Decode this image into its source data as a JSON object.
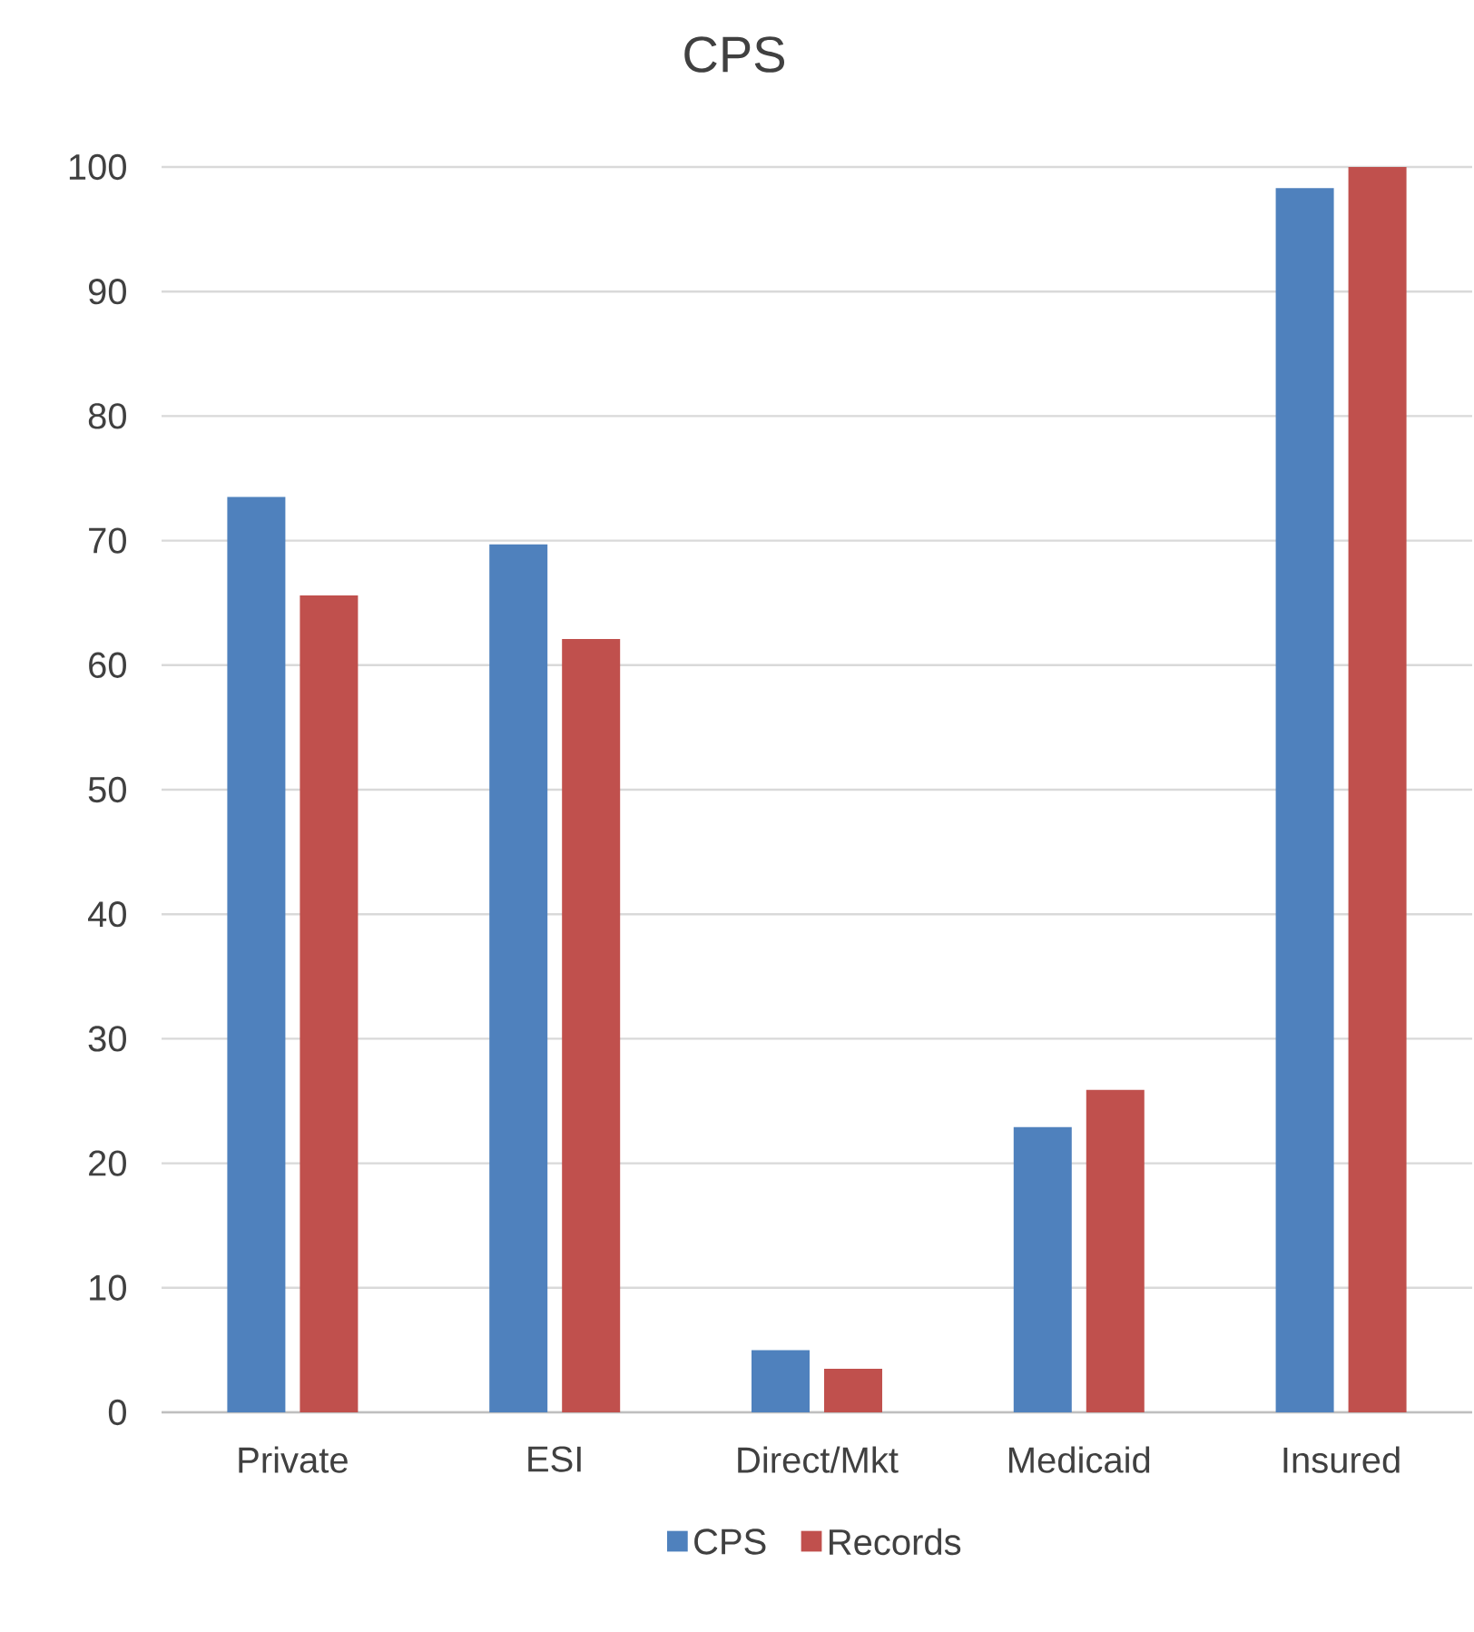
{
  "chart_data": {
    "type": "bar",
    "title": "CPS",
    "categories": [
      "Private",
      "ESI",
      "Direct/Mkt",
      "Medicaid",
      "Insured"
    ],
    "series": [
      {
        "name": "CPS",
        "color": "#4f81bd",
        "values": [
          73.5,
          69.7,
          5.0,
          22.9,
          98.3
        ]
      },
      {
        "name": "Records",
        "color": "#c0504d",
        "values": [
          65.6,
          62.1,
          3.5,
          25.9,
          100
        ]
      }
    ],
    "ylim": [
      0,
      100
    ],
    "yticks": [
      0,
      10,
      20,
      30,
      40,
      50,
      60,
      70,
      80,
      90,
      100
    ],
    "grid": "y",
    "legend": "bottom"
  }
}
